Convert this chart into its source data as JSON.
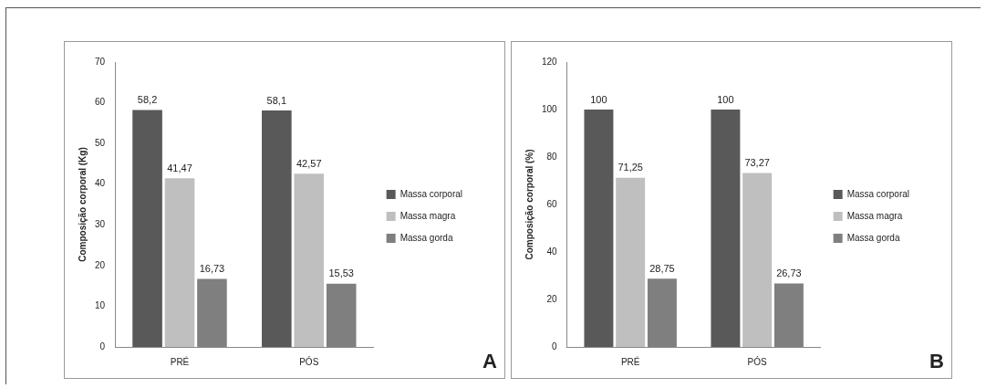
{
  "chart_data": [
    {
      "type": "bar",
      "ylabel": "Composição corporal (Kg)",
      "categories": [
        "PRÉ",
        "PÓS"
      ],
      "ylim": [
        0,
        70
      ],
      "yticks": [
        0,
        10,
        20,
        30,
        40,
        50,
        60,
        70
      ],
      "grid": false,
      "legend": "right",
      "annotations": [
        "A"
      ],
      "series": [
        {
          "name": "Massa corporal",
          "color": "#595959",
          "values": [
            58.2,
            58.1
          ],
          "value_labels": [
            "58,2",
            "58,1"
          ]
        },
        {
          "name": "Massa magra",
          "color": "#bfbfbf",
          "values": [
            41.47,
            42.57
          ],
          "value_labels": [
            "41,47",
            "42,57"
          ]
        },
        {
          "name": "Massa gorda",
          "color": "#7f7f7f",
          "values": [
            16.73,
            15.53
          ],
          "value_labels": [
            "16,73",
            "15,53"
          ]
        }
      ]
    },
    {
      "type": "bar",
      "ylabel": "Composição corporal (%)",
      "categories": [
        "PRÉ",
        "PÓS"
      ],
      "ylim": [
        0,
        120
      ],
      "yticks": [
        0,
        20,
        40,
        60,
        80,
        100,
        120
      ],
      "grid": false,
      "legend": "right",
      "annotations": [
        "B"
      ],
      "series": [
        {
          "name": "Massa corporal",
          "color": "#595959",
          "values": [
            100,
            100
          ],
          "value_labels": [
            "100",
            "100"
          ]
        },
        {
          "name": "Massa magra",
          "color": "#bfbfbf",
          "values": [
            71.25,
            73.27
          ],
          "value_labels": [
            "71,25",
            "73,27"
          ]
        },
        {
          "name": "Massa gorda",
          "color": "#7f7f7f",
          "values": [
            28.75,
            26.73
          ],
          "value_labels": [
            "28,75",
            "26,73"
          ]
        }
      ]
    }
  ]
}
